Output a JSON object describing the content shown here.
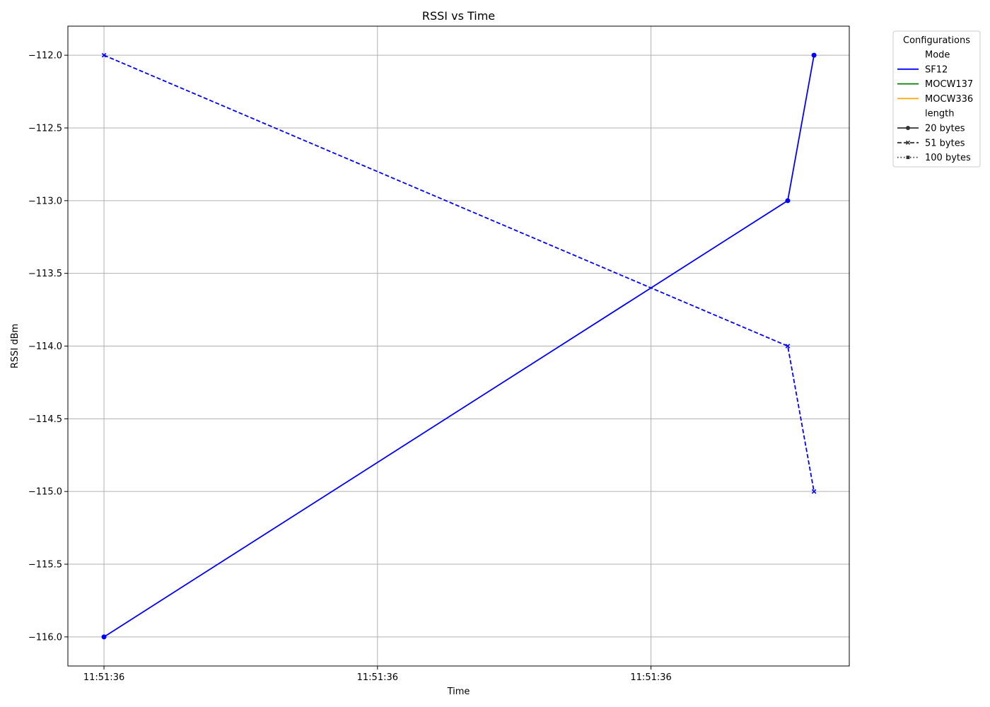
{
  "chart_data": {
    "type": "line",
    "title": "RSSI vs Time",
    "xlabel": "Time",
    "ylabel": "RSSI dBm",
    "xlim": [
      -0.132,
      2.725
    ],
    "ylim": [
      -116.2,
      -111.8
    ],
    "x_ticks": [
      {
        "value": 0,
        "label": "11:51:36"
      },
      {
        "value": 1,
        "label": "11:51:36"
      },
      {
        "value": 2,
        "label": "11:51:36"
      }
    ],
    "y_ticks": [
      {
        "value": -112.0,
        "label": "−112.0"
      },
      {
        "value": -112.5,
        "label": "−112.5"
      },
      {
        "value": -113.0,
        "label": "−113.0"
      },
      {
        "value": -113.5,
        "label": "−113.5"
      },
      {
        "value": -114.0,
        "label": "−114.0"
      },
      {
        "value": -114.5,
        "label": "−114.5"
      },
      {
        "value": -115.0,
        "label": "−115.0"
      },
      {
        "value": -115.5,
        "label": "−115.5"
      },
      {
        "value": -116.0,
        "label": "−116.0"
      }
    ],
    "grid": true,
    "legend_position": "outside-top-right",
    "series": [
      {
        "name": "SF12, 20 bytes",
        "color": "#0000ff",
        "dash": "solid",
        "marker": "circle",
        "x": [
          0,
          2.5,
          2.596
        ],
        "y": [
          -116.0,
          -113.0,
          -112.0
        ]
      },
      {
        "name": "SF12, 51 bytes",
        "color": "#0000ff",
        "dash": "dashed",
        "marker": "x",
        "x": [
          0,
          2.5,
          2.596
        ],
        "y": [
          -112.0,
          -114.0,
          -115.0
        ]
      }
    ],
    "legend": {
      "title": "Configurations",
      "entries": [
        {
          "kind": "header",
          "label": "Mode"
        },
        {
          "kind": "line",
          "label": "SF12",
          "color": "#0000ff",
          "dash": "solid",
          "marker": "none"
        },
        {
          "kind": "line",
          "label": "MOCW137",
          "color": "#008000",
          "dash": "solid",
          "marker": "none"
        },
        {
          "kind": "line",
          "label": "MOCW336",
          "color": "#ffa500",
          "dash": "solid",
          "marker": "none"
        },
        {
          "kind": "header",
          "label": "length"
        },
        {
          "kind": "line",
          "label": "20 bytes",
          "color": "#333333",
          "dash": "solid",
          "marker": "circle"
        },
        {
          "kind": "line",
          "label": "51 bytes",
          "color": "#333333",
          "dash": "dashed",
          "marker": "x"
        },
        {
          "kind": "line",
          "label": "100 bytes",
          "color": "#333333",
          "dash": "dotted",
          "marker": "square"
        }
      ]
    }
  }
}
